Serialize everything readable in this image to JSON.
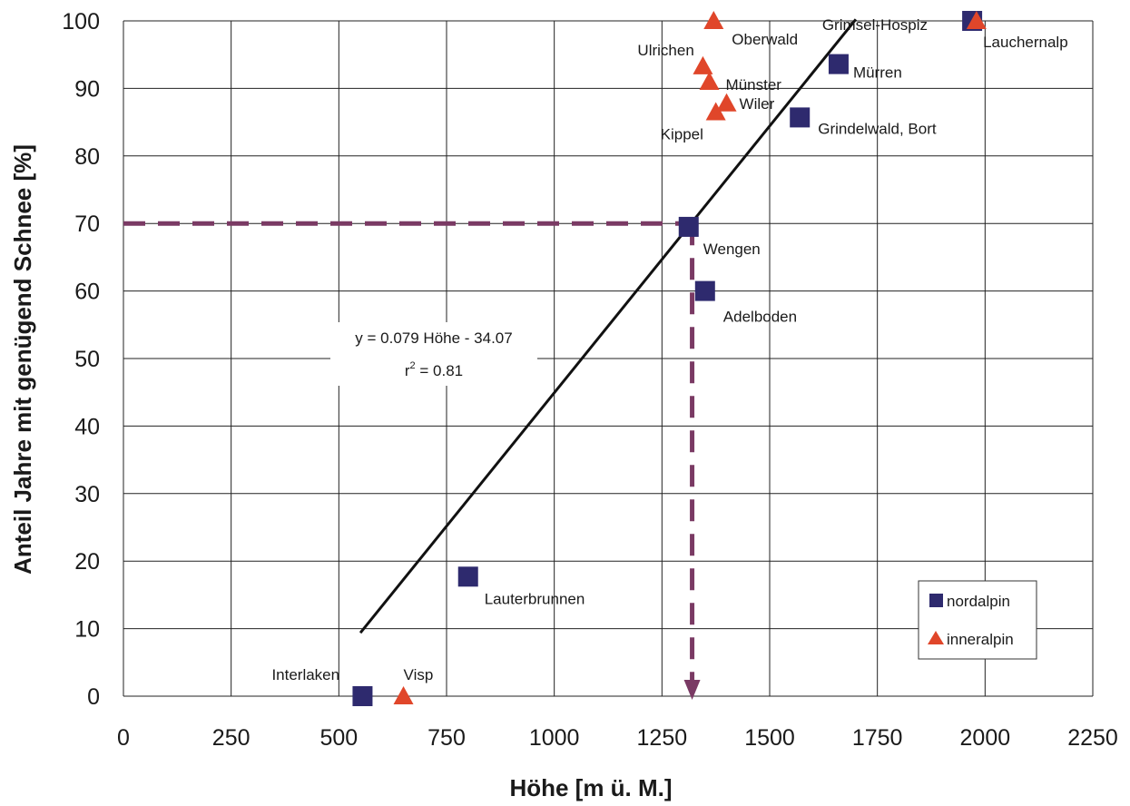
{
  "chart_data": {
    "type": "scatter",
    "xlabel": "Höhe [m ü. M.]",
    "ylabel": "Anteil Jahre mit genügend Schnee  [%]",
    "xlim": [
      0,
      2250
    ],
    "ylim": [
      0,
      100
    ],
    "x_ticks": [
      "0",
      "250",
      "500",
      "750",
      "1000",
      "1250",
      "1500",
      "1750",
      "2000",
      "2250"
    ],
    "y_ticks": [
      "0",
      "10",
      "20",
      "30",
      "40",
      "50",
      "60",
      "70",
      "80",
      "90",
      "100"
    ],
    "grid": true,
    "legend_position": "bottom-right",
    "series": [
      {
        "name": "nordalpin",
        "marker": "square",
        "color": "#2e2a6e",
        "points": [
          {
            "label": "Interlaken",
            "x": 555,
            "y": 0
          },
          {
            "label": "Lauterbrunnen",
            "x": 800,
            "y": 17.7
          },
          {
            "label": "Wengen",
            "x": 1312,
            "y": 69.5
          },
          {
            "label": "Adelboden",
            "x": 1350,
            "y": 60
          },
          {
            "label": "Grindelwald, Bort",
            "x": 1570,
            "y": 85.7
          },
          {
            "label": "Mürren",
            "x": 1660,
            "y": 93.6
          },
          {
            "label": "Lauchernalp",
            "x": 1970,
            "y": 100
          }
        ]
      },
      {
        "name": "inneralpin",
        "marker": "triangle",
        "color": "#e0462a",
        "points": [
          {
            "label": "Visp",
            "x": 650,
            "y": 0
          },
          {
            "label": "Oberwald",
            "x": 1370,
            "y": 100
          },
          {
            "label": "Ulrichen",
            "x": 1345,
            "y": 93.3
          },
          {
            "label": "Münster",
            "x": 1360,
            "y": 91
          },
          {
            "label": "Wiler",
            "x": 1400,
            "y": 87.8
          },
          {
            "label": "Kippel",
            "x": 1375,
            "y": 86.5
          },
          {
            "label": "Grimsel-Hospiz",
            "x": 1980,
            "y": 100
          }
        ]
      }
    ],
    "regression": {
      "equation": "y = 0.079 Höhe - 34.07",
      "r2_label": "r",
      "r2_sup": "2",
      "r2_value": " = 0.81",
      "slope": 0.079,
      "intercept": -34.07,
      "x_range": [
        550,
        1700
      ]
    },
    "reference": {
      "x": 1320,
      "y": 70
    },
    "colors": {
      "nordalpin": "#2e2a6e",
      "inneralpin": "#e0462a",
      "regression_line": "#111111",
      "reference_line": "#7a3a64",
      "grid": "#222222"
    }
  }
}
